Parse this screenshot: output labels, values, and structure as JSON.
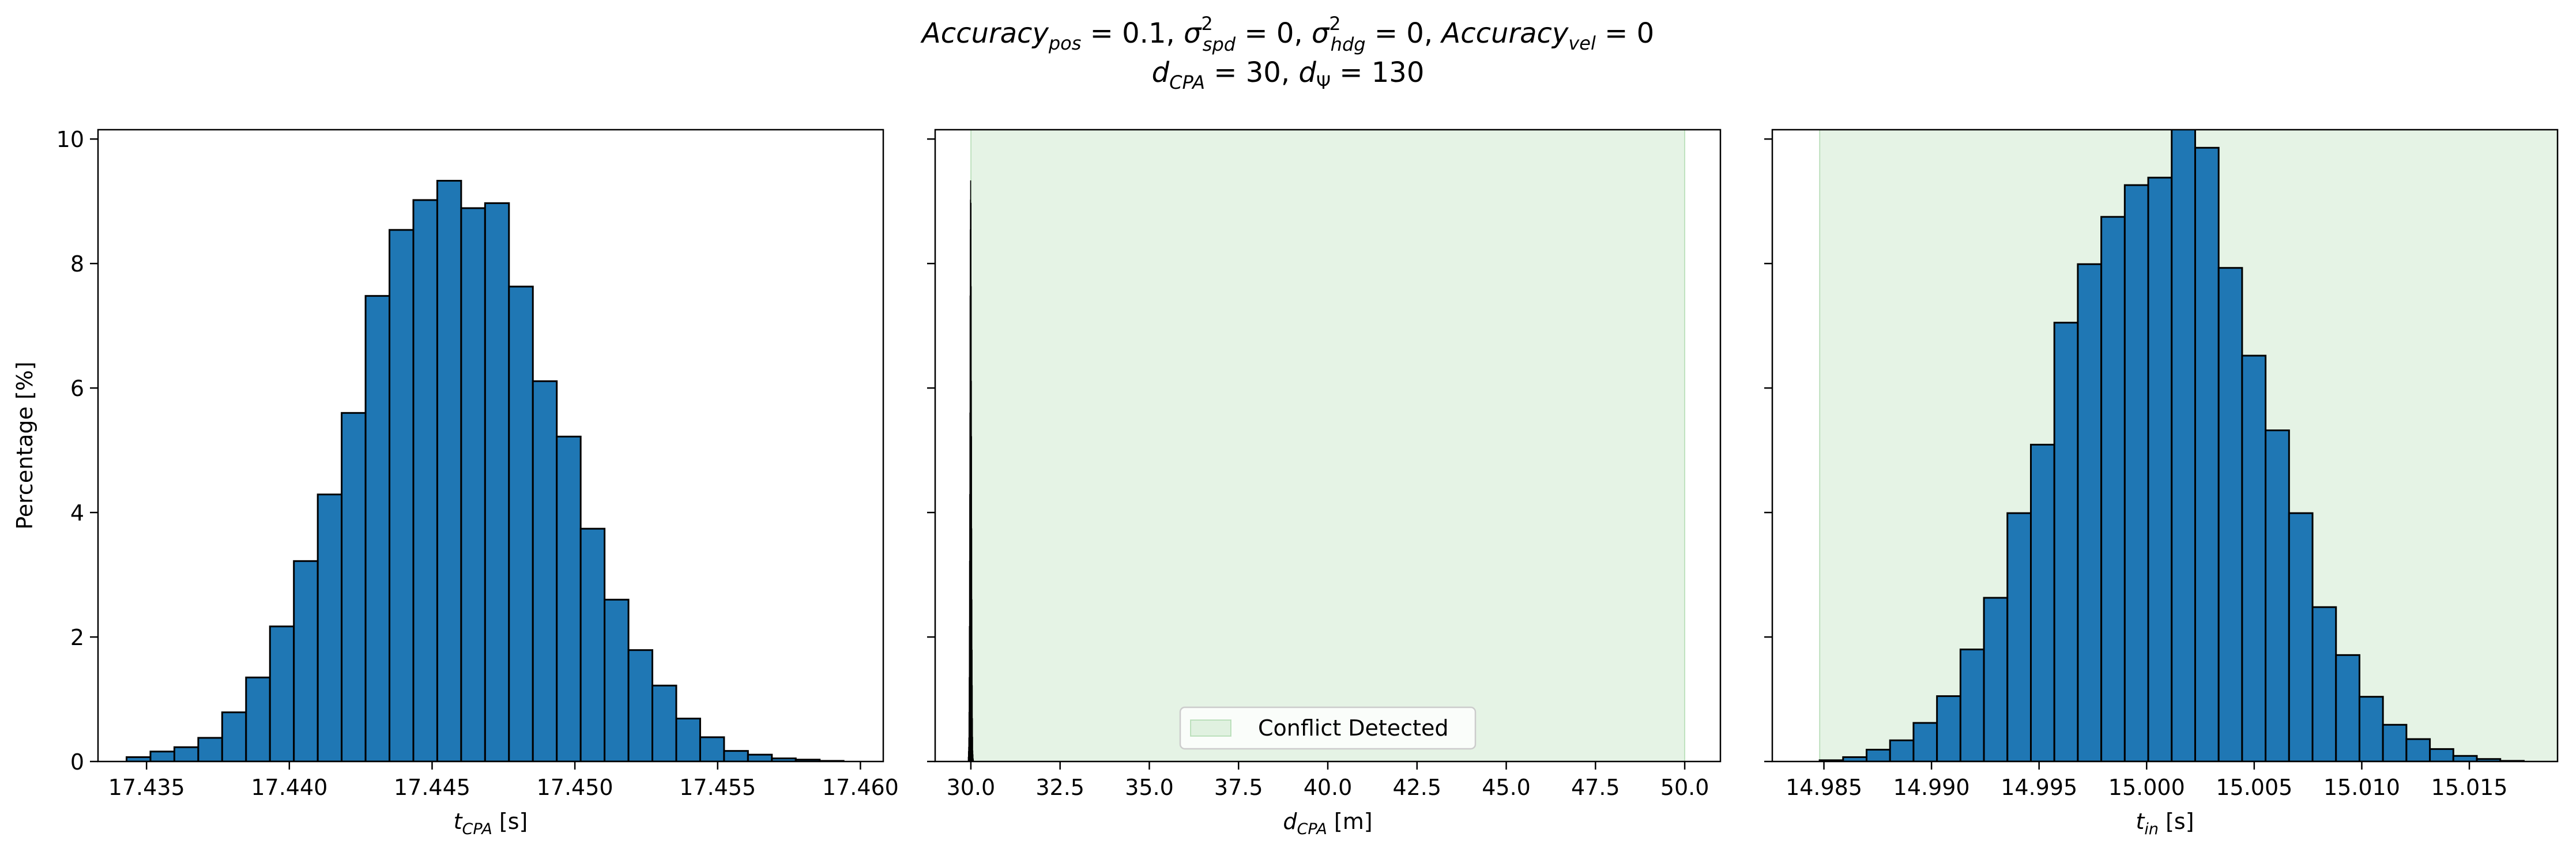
{
  "figure": {
    "title_line1": "Accuracy_pos = 0.1, σ²_spd = 0, σ²_hdg = 0, Accuracy_vel = 0",
    "title_line2": "d_CPA = 30, d_Ψ = 130"
  },
  "colors": {
    "bar": "#1f77b4",
    "bar_edge": "#000000",
    "conflict_fill": "#2ca02c",
    "axes": "#000000"
  },
  "chart_data": [
    {
      "type": "bar",
      "subtype": "histogram",
      "xlabel": "t_CPA [s]",
      "ylabel": "Percentage [%]",
      "xlim": [
        17.4333,
        17.4608
      ],
      "ylim": [
        0,
        10.15
      ],
      "xticks": [
        "17.435",
        "17.440",
        "17.445",
        "17.450",
        "17.455",
        "17.460"
      ],
      "xtick_values": [
        17.435,
        17.44,
        17.445,
        17.45,
        17.455,
        17.46
      ],
      "yticks": [
        "0",
        "2",
        "4",
        "6",
        "8",
        "10"
      ],
      "ytick_values": [
        0,
        2,
        4,
        6,
        8,
        10
      ],
      "bin_start": 17.4343,
      "bin_width": 0.000837,
      "values": [
        0.07,
        0.16,
        0.23,
        0.38,
        0.79,
        1.35,
        2.17,
        3.22,
        4.29,
        5.6,
        7.48,
        8.54,
        9.02,
        9.33,
        8.89,
        8.97,
        7.63,
        6.11,
        5.22,
        3.74,
        2.6,
        1.79,
        1.22,
        0.69,
        0.39,
        0.17,
        0.11,
        0.05,
        0.03,
        0.01
      ],
      "grid": false
    },
    {
      "type": "bar",
      "subtype": "histogram",
      "xlabel": "d_CPA [m]",
      "xlim": [
        29.0,
        51.0
      ],
      "ylim": [
        0,
        10.15
      ],
      "xticks": [
        "30.0",
        "32.5",
        "35.0",
        "37.5",
        "40.0",
        "42.5",
        "45.0",
        "47.5",
        "50.0"
      ],
      "xtick_values": [
        30.0,
        32.5,
        35.0,
        37.5,
        40.0,
        42.5,
        45.0,
        47.5,
        50.0
      ],
      "yticks": [
        "0",
        "2",
        "4",
        "6",
        "8",
        "10"
      ],
      "ytick_values": [
        0,
        2,
        4,
        6,
        8,
        10
      ],
      "bin_start": 29.925,
      "bin_width": 0.005,
      "values": [
        0.07,
        0.16,
        0.23,
        0.38,
        0.79,
        1.35,
        2.17,
        3.22,
        4.29,
        5.6,
        7.48,
        8.54,
        9.02,
        9.33,
        8.89,
        8.97,
        7.63,
        6.11,
        5.22,
        3.74,
        2.6,
        1.79,
        1.22,
        0.69,
        0.39,
        0.17,
        0.11,
        0.05,
        0.03,
        0.01
      ],
      "shaded_region": {
        "x": [
          30.0,
          50.0
        ],
        "label": "Conflict Detected"
      },
      "legend": {
        "entries": [
          "Conflict Detected"
        ],
        "position": "lower center"
      },
      "grid": false
    },
    {
      "type": "bar",
      "subtype": "histogram",
      "xlabel": "t_in [s]",
      "xlim": [
        14.9826,
        15.0191
      ],
      "ylim": [
        0,
        10.15
      ],
      "xticks": [
        "14.985",
        "14.990",
        "14.995",
        "15.000",
        "15.005",
        "15.010",
        "15.015"
      ],
      "xtick_values": [
        14.985,
        14.99,
        14.995,
        15.0,
        15.005,
        15.01,
        15.015
      ],
      "yticks": [
        "0",
        "2",
        "4",
        "6",
        "8",
        "10"
      ],
      "ytick_values": [
        0,
        2,
        4,
        6,
        8,
        10
      ],
      "bin_start": 14.9848,
      "bin_width": 0.001091,
      "values": [
        0.02,
        0.07,
        0.19,
        0.34,
        0.62,
        1.05,
        1.8,
        2.63,
        3.99,
        5.09,
        7.05,
        7.99,
        8.75,
        9.26,
        9.38,
        10.18,
        9.86,
        7.93,
        6.52,
        5.32,
        3.99,
        2.48,
        1.71,
        1.04,
        0.59,
        0.36,
        0.2,
        0.09,
        0.04,
        0.01
      ],
      "shaded_region": {
        "x": [
          14.9848,
          15.0191
        ],
        "label": "Conflict Detected"
      },
      "grid": false
    }
  ]
}
